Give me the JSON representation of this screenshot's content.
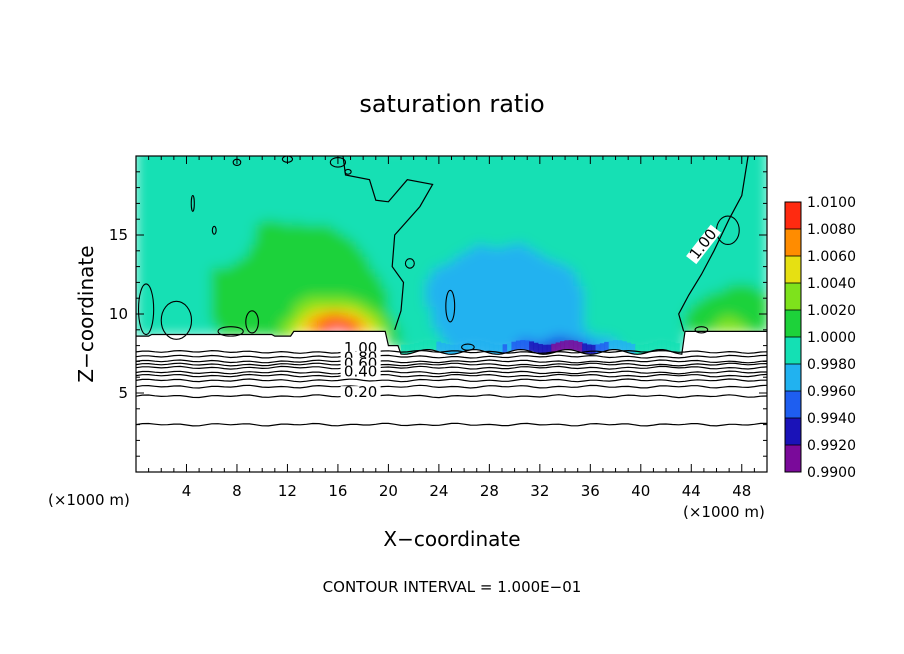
{
  "chart_data": {
    "type": "heatmap",
    "title": "saturation ratio",
    "xlabel": "X−coordinate",
    "ylabel": "Z−coordinate",
    "x_unit_left": "(×1000 m)",
    "x_unit_right": "(×1000 m)",
    "footer": "CONTOUR INTERVAL = 1.000E−01",
    "xlim": [
      0,
      50
    ],
    "ylim": [
      0,
      20
    ],
    "x_ticks": [
      4,
      8,
      12,
      16,
      20,
      24,
      28,
      32,
      36,
      40,
      44,
      48
    ],
    "y_ticks": [
      5,
      10,
      15
    ],
    "colorbar": {
      "levels": [
        "0.9900",
        "0.9920",
        "0.9940",
        "0.9960",
        "0.9980",
        "1.0000",
        "1.0020",
        "1.0040",
        "1.0060",
        "1.0080",
        "1.0100"
      ],
      "colors": [
        "#7a0a9a",
        "#1a12b8",
        "#1e5ef0",
        "#21b2f0",
        "#14e0b4",
        "#1dd23a",
        "#7ee21c",
        "#e6e012",
        "#ff8c00",
        "#ff2a10",
        "#ffa8a0"
      ]
    },
    "contour_labels": [
      {
        "text": "1.00",
        "x": 17.8,
        "z": 7.6
      },
      {
        "text": "0.80",
        "x": 17.8,
        "z": 7.0
      },
      {
        "text": "0.60",
        "x": 17.8,
        "z": 6.6
      },
      {
        "text": "0.40",
        "x": 17.8,
        "z": 6.1
      },
      {
        "text": "0.20",
        "x": 17.8,
        "z": 4.8
      },
      {
        "text": "1.00",
        "x": 45.0,
        "z": 14.2
      }
    ]
  }
}
